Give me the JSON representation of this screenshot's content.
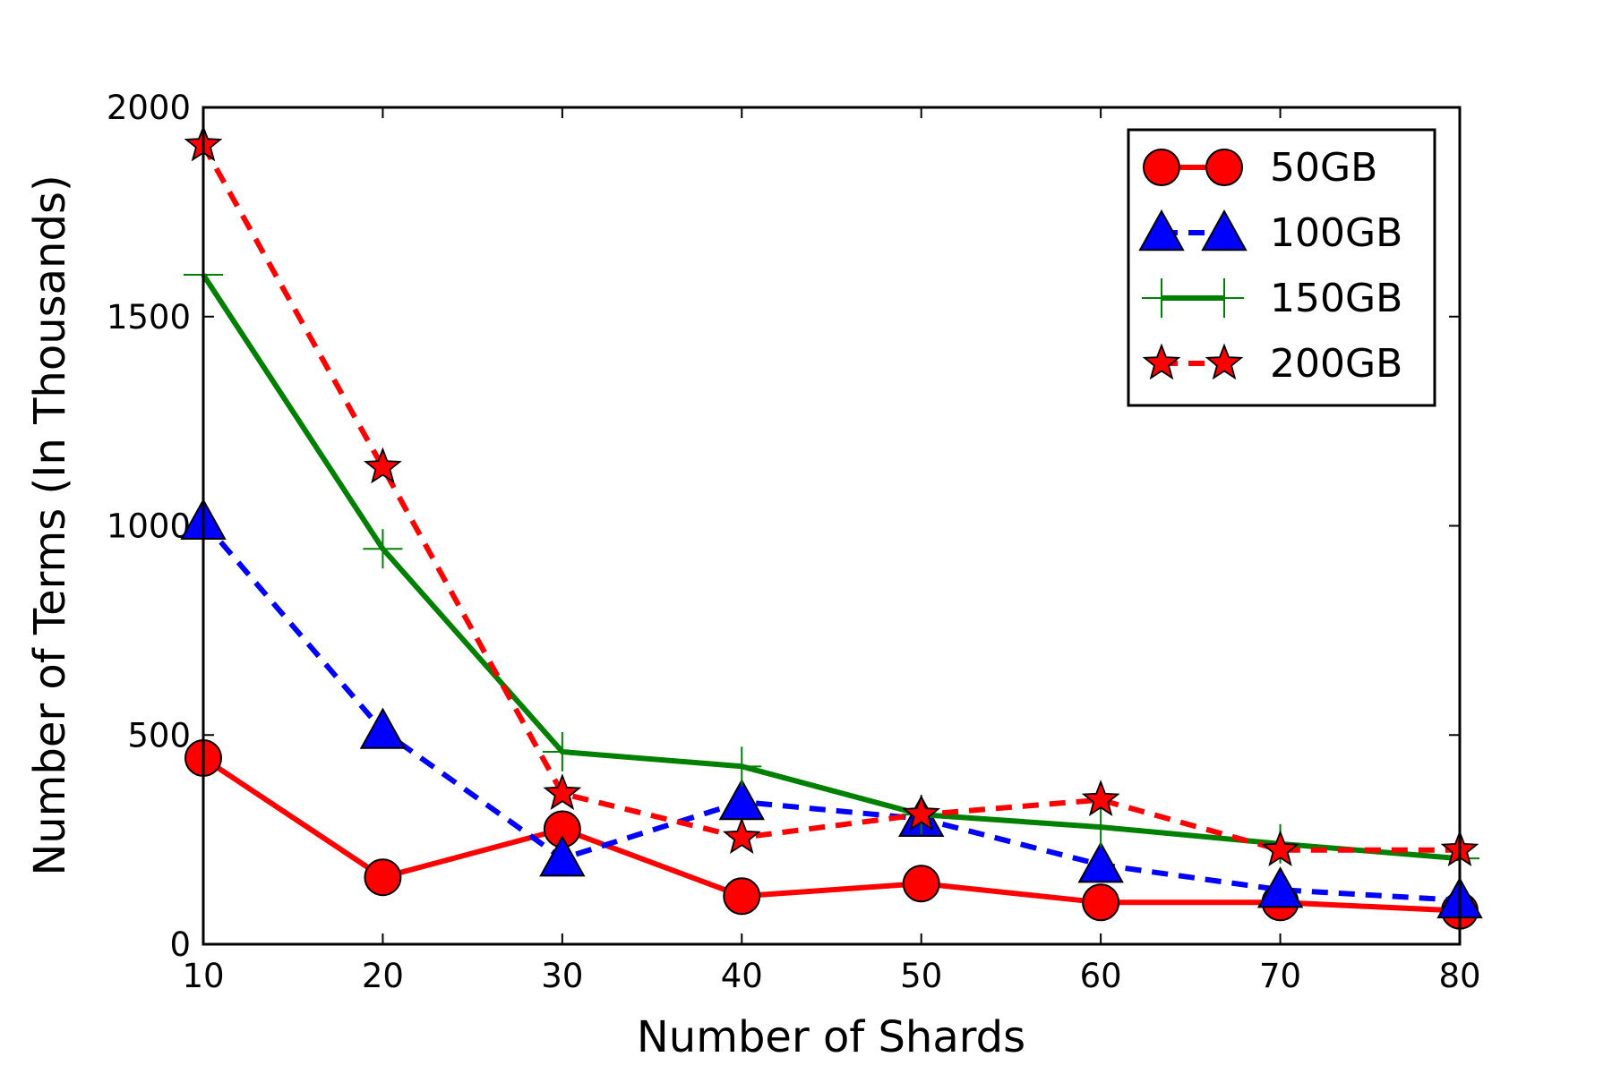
{
  "chart_data": {
    "type": "line",
    "xlabel": "Number of Shards",
    "ylabel": "Number of Terms (In Thousands)",
    "xlim": [
      10,
      80
    ],
    "ylim": [
      0,
      2000
    ],
    "x": [
      10,
      20,
      30,
      40,
      50,
      60,
      70,
      80
    ],
    "xticks": [
      "10",
      "20",
      "30",
      "40",
      "50",
      "60",
      "70",
      "80"
    ],
    "yticks": [
      "0",
      "500",
      "1000",
      "1500",
      "2000"
    ],
    "grid": false,
    "legend_position": "top-right",
    "series": [
      {
        "name": "50GB",
        "color": "#ff0000",
        "line_style": "solid",
        "marker": "circle",
        "values": [
          445,
          160,
          275,
          115,
          145,
          100,
          100,
          80
        ]
      },
      {
        "name": "100GB",
        "color": "#0000ff",
        "line_style": "dashed",
        "marker": "triangle",
        "values": [
          1010,
          510,
          205,
          340,
          300,
          190,
          130,
          105
        ]
      },
      {
        "name": "150GB",
        "color": "#008000",
        "line_style": "solid",
        "marker": "plus",
        "values": [
          1600,
          945,
          460,
          425,
          310,
          280,
          240,
          205
        ]
      },
      {
        "name": "200GB",
        "color": "#ff0000",
        "line_style": "dashed",
        "marker": "star",
        "values": [
          1910,
          1140,
          360,
          255,
          310,
          345,
          225,
          225
        ]
      }
    ]
  }
}
